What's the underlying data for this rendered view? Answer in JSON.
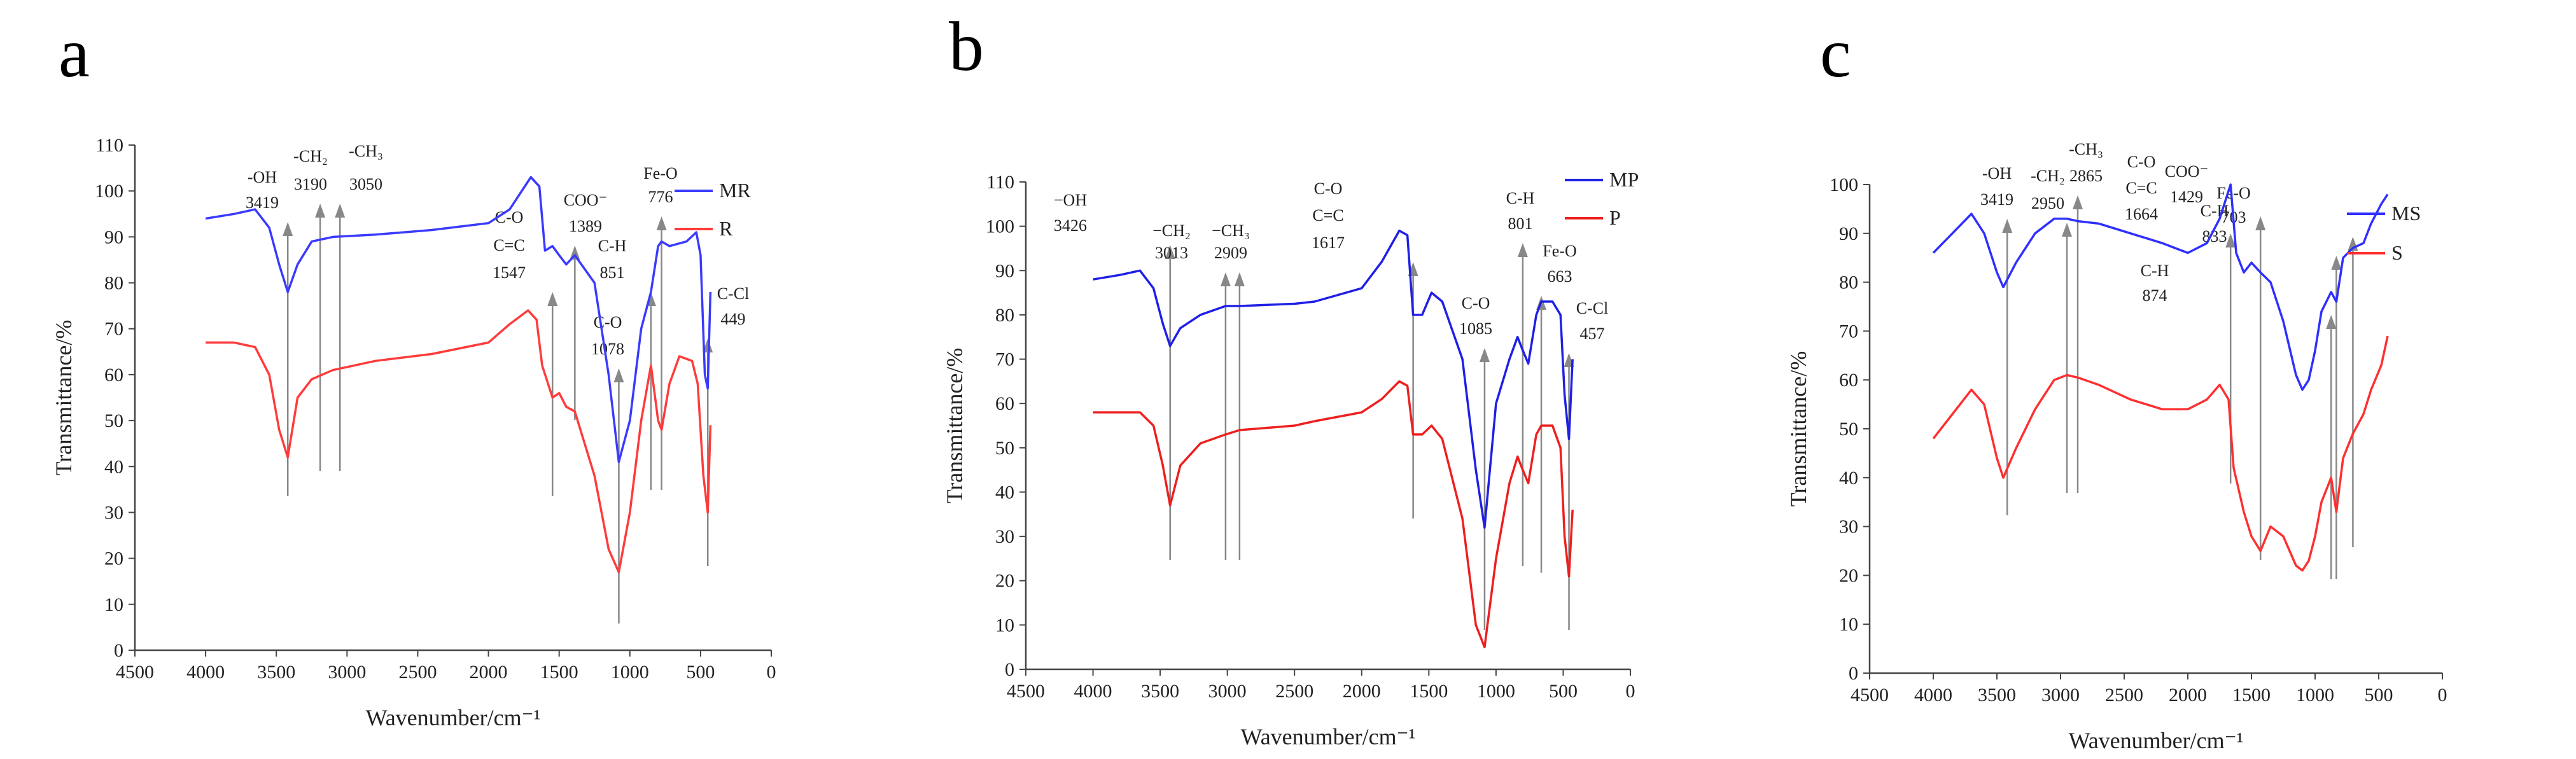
{
  "chart_data": [
    {
      "type": "line",
      "panel_letter": "a",
      "xlabel": "Wavenumber/cm⁻¹",
      "ylabel": "Transmittance/%",
      "xlim": [
        4500,
        0
      ],
      "ylim": [
        0,
        110
      ],
      "xticks": [
        "4500",
        "4000",
        "3500",
        "3000",
        "2500",
        "2000",
        "1500",
        "1000",
        "500",
        "0"
      ],
      "yticks": [
        "0",
        "10",
        "20",
        "30",
        "40",
        "50",
        "60",
        "70",
        "80",
        "90",
        "100",
        "110"
      ],
      "legend": [
        {
          "name": "MR",
          "color": "#3a3aff"
        },
        {
          "name": "R",
          "color": "#ff3b3b"
        }
      ],
      "series": [
        {
          "name": "MR",
          "color": "#3a3aff",
          "points": [
            [
              4000,
              94
            ],
            [
              3800,
              95
            ],
            [
              3650,
              96
            ],
            [
              3550,
              92
            ],
            [
              3480,
              84
            ],
            [
              3419,
              78
            ],
            [
              3350,
              84
            ],
            [
              3250,
              89
            ],
            [
              3100,
              90
            ],
            [
              2800,
              90.5
            ],
            [
              2400,
              91.5
            ],
            [
              2000,
              93
            ],
            [
              1850,
              96
            ],
            [
              1700,
              103
            ],
            [
              1640,
              101
            ],
            [
              1600,
              87
            ],
            [
              1547,
              88
            ],
            [
              1500,
              86
            ],
            [
              1450,
              84
            ],
            [
              1389,
              86
            ],
            [
              1250,
              80
            ],
            [
              1150,
              60
            ],
            [
              1078,
              41
            ],
            [
              1000,
              50
            ],
            [
              920,
              70
            ],
            [
              851,
              78
            ],
            [
              800,
              88
            ],
            [
              776,
              89
            ],
            [
              720,
              88
            ],
            [
              600,
              89
            ],
            [
              530,
              91
            ],
            [
              500,
              86
            ],
            [
              470,
              60
            ],
            [
              449,
              57
            ],
            [
              430,
              78
            ]
          ]
        },
        {
          "name": "R",
          "color": "#ff3b3b",
          "points": [
            [
              4000,
              67
            ],
            [
              3800,
              67
            ],
            [
              3650,
              66
            ],
            [
              3550,
              60
            ],
            [
              3480,
              48
            ],
            [
              3419,
              42
            ],
            [
              3350,
              55
            ],
            [
              3250,
              59
            ],
            [
              3100,
              61
            ],
            [
              2800,
              63
            ],
            [
              2400,
              64.5
            ],
            [
              2000,
              67
            ],
            [
              1850,
              71
            ],
            [
              1720,
              74
            ],
            [
              1660,
              72
            ],
            [
              1620,
              62
            ],
            [
              1547,
              55
            ],
            [
              1500,
              56
            ],
            [
              1450,
              53
            ],
            [
              1389,
              52
            ],
            [
              1250,
              38
            ],
            [
              1150,
              22
            ],
            [
              1078,
              17
            ],
            [
              1000,
              30
            ],
            [
              920,
              50
            ],
            [
              851,
              62
            ],
            [
              800,
              50
            ],
            [
              776,
              48
            ],
            [
              720,
              58
            ],
            [
              650,
              64
            ],
            [
              560,
              63
            ],
            [
              520,
              58
            ],
            [
              480,
              38
            ],
            [
              449,
              30
            ],
            [
              430,
              49
            ]
          ]
        }
      ],
      "annotations": [
        {
          "label": "-OH",
          "value": "3419",
          "x": 3419
        },
        {
          "label": "-CH₂",
          "value": "3190",
          "x": 3190
        },
        {
          "label": "-CH₃",
          "value": "3050",
          "x": 3050
        },
        {
          "label": "C-O C=C",
          "value": "1547",
          "x": 1547
        },
        {
          "label": "COO⁻",
          "value": "1389",
          "x": 1389
        },
        {
          "label": "C-H",
          "value": "851",
          "x": 851
        },
        {
          "label": "C-O",
          "value": "1078",
          "x": 1078
        },
        {
          "label": "Fe-O",
          "value": "776",
          "x": 776
        },
        {
          "label": "C-Cl",
          "value": "449",
          "x": 449
        }
      ]
    },
    {
      "type": "line",
      "panel_letter": "b",
      "xlabel": "Wavenumber/cm⁻¹",
      "ylabel": "Transmittance/%",
      "xlim": [
        4500,
        0
      ],
      "ylim": [
        0,
        110
      ],
      "xticks": [
        "4500",
        "4000",
        "3500",
        "3000",
        "2500",
        "2000",
        "1500",
        "1000",
        "500",
        "0"
      ],
      "yticks": [
        "0",
        "10",
        "20",
        "30",
        "40",
        "50",
        "60",
        "70",
        "80",
        "90",
        "100",
        "110"
      ],
      "legend": [
        {
          "name": "MP",
          "color": "#1f1fe6"
        },
        {
          "name": "P",
          "color": "#ee1f1f"
        }
      ],
      "series": [
        {
          "name": "MP",
          "color": "#1f1fe6",
          "points": [
            [
              4000,
              88
            ],
            [
              3800,
              89
            ],
            [
              3650,
              90
            ],
            [
              3550,
              86
            ],
            [
              3480,
              78
            ],
            [
              3426,
              73
            ],
            [
              3350,
              77
            ],
            [
              3200,
              80
            ],
            [
              3013,
              82
            ],
            [
              2909,
              82
            ],
            [
              2500,
              82.5
            ],
            [
              2350,
              83
            ],
            [
              2000,
              86
            ],
            [
              1850,
              92
            ],
            [
              1720,
              99
            ],
            [
              1660,
              98
            ],
            [
              1617,
              80
            ],
            [
              1550,
              80
            ],
            [
              1480,
              85
            ],
            [
              1400,
              83
            ],
            [
              1250,
              70
            ],
            [
              1150,
              45
            ],
            [
              1085,
              32
            ],
            [
              1000,
              60
            ],
            [
              900,
              70
            ],
            [
              840,
              75
            ],
            [
              801,
              72
            ],
            [
              760,
              69
            ],
            [
              700,
              80
            ],
            [
              663,
              83
            ],
            [
              580,
              83
            ],
            [
              520,
              80
            ],
            [
              490,
              62
            ],
            [
              457,
              52
            ],
            [
              430,
              70
            ]
          ]
        },
        {
          "name": "P",
          "color": "#ee1f1f",
          "points": [
            [
              4000,
              58
            ],
            [
              3800,
              58
            ],
            [
              3650,
              58
            ],
            [
              3550,
              55
            ],
            [
              3480,
              46
            ],
            [
              3426,
              37
            ],
            [
              3350,
              46
            ],
            [
              3200,
              51
            ],
            [
              3013,
              53
            ],
            [
              2909,
              54
            ],
            [
              2500,
              55
            ],
            [
              2350,
              56
            ],
            [
              2000,
              58
            ],
            [
              1850,
              61
            ],
            [
              1720,
              65
            ],
            [
              1660,
              64
            ],
            [
              1617,
              53
            ],
            [
              1550,
              53
            ],
            [
              1480,
              55
            ],
            [
              1400,
              52
            ],
            [
              1250,
              34
            ],
            [
              1150,
              10
            ],
            [
              1085,
              5
            ],
            [
              1000,
              25
            ],
            [
              900,
              42
            ],
            [
              840,
              48
            ],
            [
              801,
              45
            ],
            [
              760,
              42
            ],
            [
              700,
              53
            ],
            [
              663,
              55
            ],
            [
              580,
              55
            ],
            [
              520,
              50
            ],
            [
              490,
              30
            ],
            [
              457,
              21
            ],
            [
              430,
              36
            ]
          ]
        }
      ],
      "annotations": [
        {
          "label": "−OH",
          "value": "3426",
          "x": 3426
        },
        {
          "label": "−CH₂",
          "value": "3013",
          "x": 3013
        },
        {
          "label": "−CH₃",
          "value": "2909",
          "x": 2909
        },
        {
          "label": "C-O C=C",
          "value": "1617",
          "x": 1617
        },
        {
          "label": "C-H",
          "value": "801",
          "x": 801
        },
        {
          "label": "C-O",
          "value": "1085",
          "x": 1085
        },
        {
          "label": "Fe-O",
          "value": "663",
          "x": 663
        },
        {
          "label": "C-Cl",
          "value": "457",
          "x": 457
        }
      ]
    },
    {
      "type": "line",
      "panel_letter": "c",
      "xlabel": "Wavenumber/cm⁻¹",
      "ylabel": "Transmittance/%",
      "xlim": [
        4500,
        0
      ],
      "ylim": [
        0,
        100
      ],
      "xticks": [
        "4500",
        "4000",
        "3500",
        "3000",
        "2500",
        "2000",
        "1500",
        "1000",
        "500",
        "0"
      ],
      "yticks": [
        "0",
        "10",
        "20",
        "30",
        "40",
        "50",
        "60",
        "70",
        "80",
        "90",
        "100"
      ],
      "legend": [
        {
          "name": "MS",
          "color": "#2f2fff"
        },
        {
          "name": "S",
          "color": "#ff2f2f"
        }
      ],
      "series": [
        {
          "name": "MS",
          "color": "#2f2fff",
          "points": [
            [
              4000,
              86
            ],
            [
              3850,
              90
            ],
            [
              3700,
              94
            ],
            [
              3600,
              90
            ],
            [
              3500,
              82
            ],
            [
              3450,
              79
            ],
            [
              3350,
              84
            ],
            [
              3200,
              90
            ],
            [
              3050,
              93
            ],
            [
              2950,
              93
            ],
            [
              2865,
              92.5
            ],
            [
              2700,
              92
            ],
            [
              2450,
              90
            ],
            [
              2200,
              88
            ],
            [
              2000,
              86
            ],
            [
              1850,
              88
            ],
            [
              1750,
              93
            ],
            [
              1664,
              100
            ],
            [
              1620,
              86
            ],
            [
              1560,
              82
            ],
            [
              1500,
              84
            ],
            [
              1429,
              82
            ],
            [
              1350,
              80
            ],
            [
              1250,
              72
            ],
            [
              1150,
              61
            ],
            [
              1100,
              58
            ],
            [
              1050,
              60
            ],
            [
              1000,
              66
            ],
            [
              950,
              74
            ],
            [
              874,
              78
            ],
            [
              833,
              76
            ],
            [
              780,
              85
            ],
            [
              703,
              87
            ],
            [
              620,
              88
            ],
            [
              560,
              92
            ],
            [
              480,
              96
            ],
            [
              430,
              98
            ]
          ]
        },
        {
          "name": "S",
          "color": "#ff2f2f",
          "points": [
            [
              4000,
              48
            ],
            [
              3850,
              53
            ],
            [
              3700,
              58
            ],
            [
              3600,
              55
            ],
            [
              3500,
              44
            ],
            [
              3450,
              40
            ],
            [
              3350,
              46
            ],
            [
              3200,
              54
            ],
            [
              3050,
              60
            ],
            [
              2950,
              61
            ],
            [
              2865,
              60.5
            ],
            [
              2700,
              59
            ],
            [
              2450,
              56
            ],
            [
              2200,
              54
            ],
            [
              2000,
              54
            ],
            [
              1850,
              56
            ],
            [
              1750,
              59
            ],
            [
              1680,
              56
            ],
            [
              1640,
              42
            ],
            [
              1560,
              33
            ],
            [
              1500,
              28
            ],
            [
              1429,
              25
            ],
            [
              1350,
              30
            ],
            [
              1250,
              28
            ],
            [
              1150,
              22
            ],
            [
              1100,
              21
            ],
            [
              1050,
              23
            ],
            [
              1000,
              28
            ],
            [
              950,
              35
            ],
            [
              874,
              40
            ],
            [
              833,
              33
            ],
            [
              780,
              44
            ],
            [
              703,
              49
            ],
            [
              620,
              53
            ],
            [
              560,
              58
            ],
            [
              480,
              63
            ],
            [
              430,
              69
            ]
          ]
        }
      ],
      "annotations": [
        {
          "label": "-OH",
          "value": "3419",
          "x": 3419
        },
        {
          "label": "-CH₂",
          "value": "2950",
          "x": 2950
        },
        {
          "label": "-CH₃",
          "value": "2865",
          "x": 2865
        },
        {
          "label": "C-O C=C",
          "value": "1664",
          "x": 1664
        },
        {
          "label": "COO⁻",
          "value": "1429",
          "x": 1429
        },
        {
          "label": "C-H",
          "value": "874",
          "x": 874
        },
        {
          "label": "C-H",
          "value": "833",
          "x": 833
        },
        {
          "label": "Fe-O",
          "value": "703",
          "x": 703
        }
      ]
    }
  ]
}
